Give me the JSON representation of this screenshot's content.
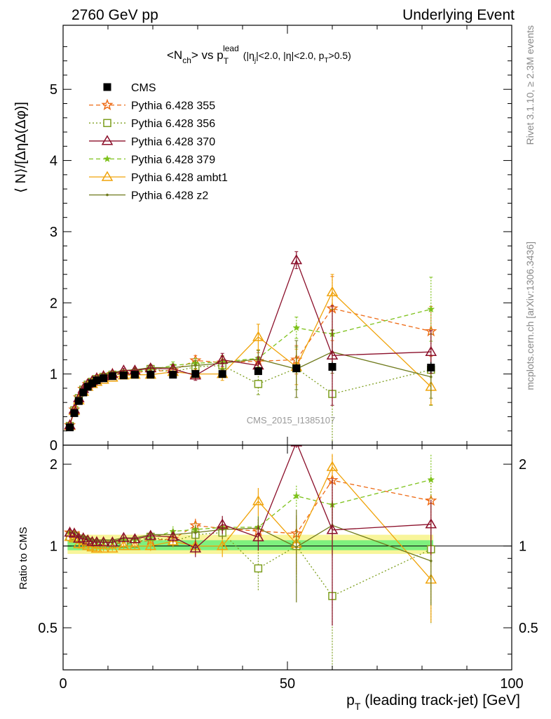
{
  "header": {
    "left": "2760 GeV pp",
    "right": "Underlying Event"
  },
  "plot_title": {
    "main": "<N",
    "ch_sub": "ch",
    "vs": "> vs p",
    "p_sub": "T",
    "p_sup": "lead",
    "cuts_1": "(|η",
    "cuts_j": "j",
    "cuts_2": "|<2.0, |η|<2.0, p",
    "cuts_t": "T",
    "cuts_3": ">0.5)"
  },
  "side_labels": {
    "rivet": "Rivet 3.1.10, ≥ 2.3M events",
    "mcplots": "mcplots.cern.ch [arXiv:1306.3436]"
  },
  "watermark": "CMS_2015_I1385107",
  "ratio_ylabel": "Ratio to CMS",
  "colors": {
    "cms": "#000000",
    "p355": "#ee6a14",
    "p356": "#7d9e1e",
    "p370": "#8b0f2a",
    "p379": "#7ec21c",
    "ambt1": "#f0a30a",
    "z2": "#6f7a1c",
    "band_inner": "#7ef07e",
    "band_outer": "#f8f59a"
  },
  "chart_data": {
    "type": "line",
    "title": "<Nch> vs pT lead (|ηj|<2.0, |η|<2.0, pT>0.5)",
    "xlabel": "pT (leading track-jet) [GeV]",
    "ylabel": "⟨ N⟩/[ΔηΔ(Δφ)]",
    "xlim": [
      0,
      100
    ],
    "ylim": [
      0,
      5.9
    ],
    "ratio_ylim": [
      0.35,
      2.35
    ],
    "x_ticks": [
      "0",
      "50",
      "100"
    ],
    "y_ticks": [
      "0",
      "1",
      "2",
      "3",
      "4",
      "5"
    ],
    "ratio_ticks": [
      "0.5",
      "1",
      "2"
    ],
    "legend_position": "top-left",
    "x": [
      1.5,
      2.5,
      3.5,
      4.5,
      5.5,
      6.5,
      7.5,
      9,
      11,
      13.5,
      16,
      19.5,
      24.5,
      29.5,
      35.5,
      43.5,
      52,
      60,
      82
    ],
    "series": [
      {
        "name": "CMS",
        "key": "cms",
        "marker": "square",
        "dash": "",
        "values": [
          0.25,
          0.45,
          0.62,
          0.74,
          0.82,
          0.87,
          0.91,
          0.94,
          0.97,
          0.98,
          0.99,
          0.99,
          0.99,
          1.0,
          1.0,
          1.04,
          1.08,
          1.1,
          1.09
        ],
        "errors": [
          0.02,
          0.02,
          0.02,
          0.02,
          0.02,
          0.02,
          0.02,
          0.02,
          0.02,
          0.02,
          0.02,
          0.02,
          0.03,
          0.03,
          0.04,
          0.05,
          0.06,
          0.07,
          0.08
        ]
      },
      {
        "name": "Pythia 6.428 355",
        "key": "p355",
        "marker": "star",
        "dash": "6,4",
        "values": [
          0.28,
          0.5,
          0.67,
          0.79,
          0.86,
          0.9,
          0.94,
          0.97,
          1.0,
          1.0,
          1.02,
          1.04,
          1.05,
          1.19,
          1.16,
          1.18,
          1.2,
          1.92,
          1.6
        ],
        "errors": [
          0.01,
          0.01,
          0.01,
          0.01,
          0.01,
          0.01,
          0.02,
          0.02,
          0.02,
          0.03,
          0.03,
          0.04,
          0.05,
          0.07,
          0.09,
          0.12,
          0.2,
          0.45,
          0.35
        ]
      },
      {
        "name": "Pythia 6.428 356",
        "key": "p356",
        "marker": "opensquare",
        "dash": "2,3",
        "values": [
          0.27,
          0.49,
          0.66,
          0.78,
          0.85,
          0.89,
          0.93,
          0.96,
          0.99,
          1.0,
          1.01,
          1.07,
          1.03,
          1.1,
          1.12,
          0.86,
          1.08,
          0.72,
          1.06
        ],
        "errors": [
          0.01,
          0.01,
          0.01,
          0.01,
          0.01,
          0.01,
          0.02,
          0.02,
          0.02,
          0.03,
          0.03,
          0.04,
          0.05,
          0.07,
          0.09,
          0.15,
          0.3,
          0.9,
          0.5
        ]
      },
      {
        "name": "Pythia 6.428 370",
        "key": "p370",
        "marker": "opentriangle",
        "dash": "",
        "values": [
          0.28,
          0.5,
          0.66,
          0.79,
          0.86,
          0.9,
          0.94,
          0.97,
          1.0,
          1.05,
          1.05,
          1.08,
          1.07,
          0.98,
          1.2,
          1.12,
          2.6,
          1.26,
          1.31
        ],
        "errors": [
          0.01,
          0.01,
          0.01,
          0.01,
          0.01,
          0.01,
          0.02,
          0.02,
          0.02,
          0.03,
          0.03,
          0.04,
          0.05,
          0.07,
          0.09,
          0.12,
          0.12,
          0.7,
          0.3
        ]
      },
      {
        "name": "Pythia 6.428 379",
        "key": "p379",
        "marker": "smallstar",
        "dash": "6,4",
        "values": [
          0.28,
          0.5,
          0.66,
          0.79,
          0.86,
          0.9,
          0.94,
          0.97,
          1.0,
          1.03,
          1.04,
          1.06,
          1.12,
          1.15,
          1.17,
          1.22,
          1.65,
          1.56,
          1.91
        ],
        "errors": [
          0.01,
          0.01,
          0.01,
          0.01,
          0.01,
          0.01,
          0.02,
          0.02,
          0.02,
          0.03,
          0.03,
          0.04,
          0.05,
          0.07,
          0.09,
          0.12,
          0.15,
          0.35,
          0.45
        ]
      },
      {
        "name": "Pythia 6.428 ambt1",
        "key": "ambt1",
        "marker": "opentriangle",
        "dash": "",
        "values": [
          0.27,
          0.48,
          0.63,
          0.75,
          0.82,
          0.86,
          0.89,
          0.92,
          0.95,
          0.98,
          0.99,
          0.99,
          1.03,
          1.0,
          1.0,
          1.52,
          1.1,
          2.15,
          0.82
        ],
        "errors": [
          0.01,
          0.01,
          0.01,
          0.01,
          0.01,
          0.01,
          0.02,
          0.02,
          0.02,
          0.03,
          0.03,
          0.04,
          0.05,
          0.07,
          0.09,
          0.18,
          0.25,
          0.25,
          0.25
        ]
      },
      {
        "name": "Pythia 6.428 z2",
        "key": "z2",
        "marker": "dot",
        "dash": "",
        "values": [
          0.28,
          0.5,
          0.67,
          0.8,
          0.87,
          0.91,
          0.95,
          0.99,
          1.02,
          1.05,
          1.06,
          1.09,
          1.09,
          1.12,
          1.15,
          1.21,
          1.07,
          1.31,
          0.96
        ],
        "errors": [
          0.01,
          0.01,
          0.01,
          0.01,
          0.01,
          0.01,
          0.02,
          0.02,
          0.02,
          0.03,
          0.03,
          0.04,
          0.05,
          0.07,
          0.09,
          0.12,
          0.4,
          0.3,
          0.3
        ]
      }
    ]
  }
}
